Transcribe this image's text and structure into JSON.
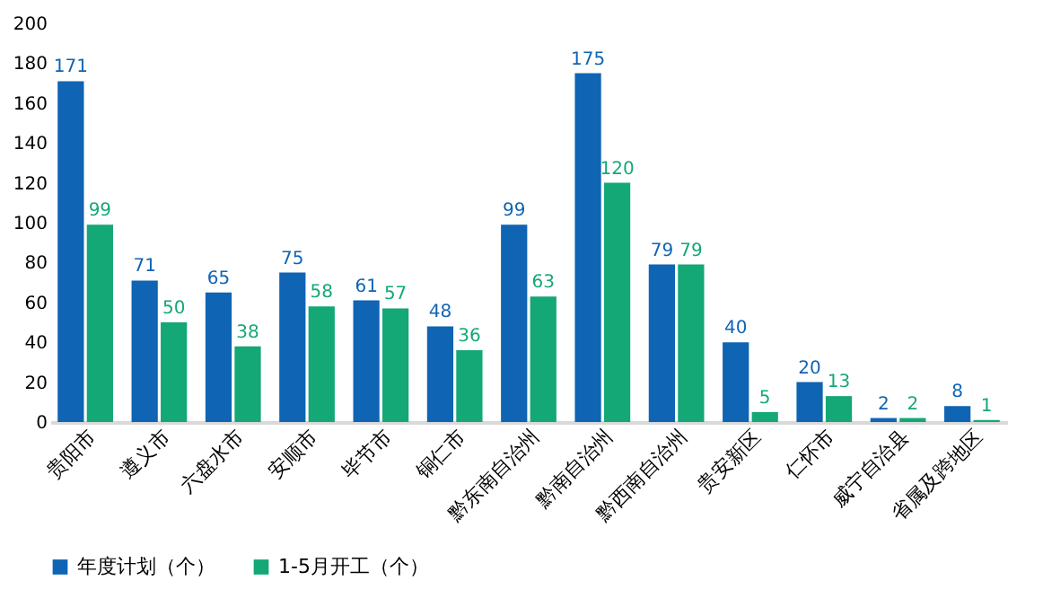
{
  "chart_data": {
    "type": "bar",
    "categories": [
      "贵阳市",
      "遵义市",
      "六盘水市",
      "安顺市",
      "毕节市",
      "铜仁市",
      "黔东南自治州",
      "黔南自治州",
      "黔西南自治州",
      "贵安新区",
      "仁怀市",
      "威宁自治县",
      "省属及跨地区"
    ],
    "series": [
      {
        "name": "年度计划（个）",
        "color": "#0f64b4",
        "values": [
          171,
          71,
          65,
          75,
          61,
          48,
          99,
          175,
          79,
          40,
          20,
          2,
          8
        ]
      },
      {
        "name": "1-5月开工（个）",
        "color": "#13a876",
        "values": [
          99,
          50,
          38,
          58,
          57,
          36,
          63,
          120,
          79,
          5,
          13,
          2,
          1
        ]
      }
    ],
    "ylim": [
      0,
      200
    ],
    "yticks": [
      0,
      20,
      40,
      60,
      80,
      100,
      120,
      140,
      160,
      180,
      200
    ],
    "grid": false,
    "legend": "bottom",
    "data_labels": true
  }
}
